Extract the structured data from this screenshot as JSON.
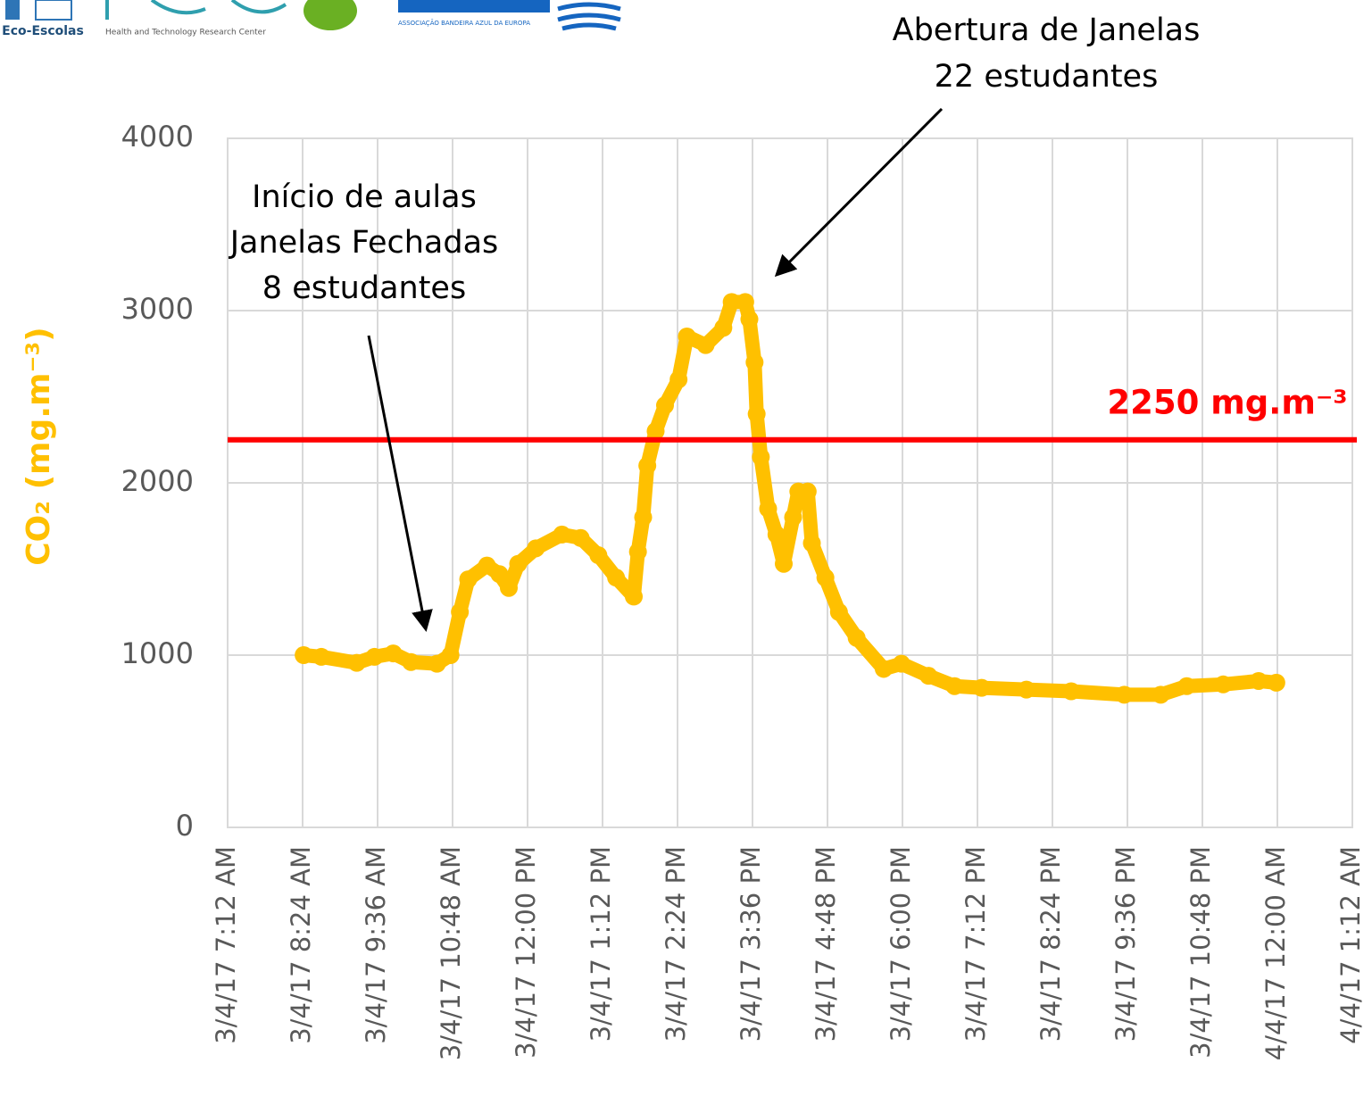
{
  "logos": [
    "Eco-Escolas",
    "Health and Technology Research Center",
    "ASSOCIAÇÃO BANDEIRA AZUL DA EUROPA"
  ],
  "chart_data": {
    "type": "scatter",
    "ylabel": "CO₂ (mg.m⁻³)",
    "ylim": [
      0,
      4000
    ],
    "yticks": [
      0,
      1000,
      2000,
      3000,
      4000
    ],
    "xlim": [
      "3/4/17 7:12 AM",
      "4/4/17 1:12 AM"
    ],
    "xticks": [
      "3/4/17 7:12 AM",
      "3/4/17 8:24 AM",
      "3/4/17 9:36 AM",
      "3/4/17 10:48 AM",
      "3/4/17 12:00 PM",
      "3/4/17 1:12 PM",
      "3/4/17 2:24 PM",
      "3/4/17 3:36 PM",
      "3/4/17 4:48 PM",
      "3/4/17 6:00 PM",
      "3/4/17 7:12 PM",
      "3/4/17 8:24 PM",
      "3/4/17 9:36 PM",
      "3/4/17 10:48 PM",
      "4/4/17 12:00 AM",
      "4/4/17 1:12 AM"
    ],
    "grid": true,
    "threshold": {
      "value": 2250,
      "label": "2250 mg.m⁻³",
      "color": "#ff0000"
    },
    "annotations": [
      {
        "lines": [
          "Início de aulas",
          "Janelas Fechadas",
          "8 estudantes"
        ]
      },
      {
        "lines": [
          "Abertura de Janelas",
          "22 estudantes"
        ]
      }
    ],
    "series": [
      {
        "name": "CO₂",
        "color": "#ffc000",
        "x": [
          "3/4/17 8:25 AM",
          "3/4/17 8:42 AM",
          "3/4/17 9:16 AM",
          "3/4/17 9:33 AM",
          "3/4/17 9:51 AM",
          "3/4/17 10:08 AM",
          "3/4/17 10:33 AM",
          "3/4/17 10:46 AM",
          "3/4/17 10:55 AM",
          "3/4/17 11:03 AM",
          "3/4/17 11:21 AM",
          "3/4/17 11:33 AM",
          "3/4/17 11:42 AM",
          "3/4/17 11:51 AM",
          "3/4/17 12:08 PM",
          "3/4/17 12:33 PM",
          "3/4/17 12:51 PM",
          "3/4/17 1:08 PM",
          "3/4/17 1:25 PM",
          "3/4/17 1:42 PM",
          "3/4/17 1:46 PM",
          "3/4/17 1:51 PM",
          "3/4/17 1:55 PM",
          "3/4/17 2:03 PM",
          "3/4/17 2:12 PM",
          "3/4/17 2:25 PM",
          "3/4/17 2:33 PM",
          "3/4/17 2:51 PM",
          "3/4/17 3:08 PM",
          "3/4/17 3:16 PM",
          "3/4/17 3:29 PM",
          "3/4/17 3:33 PM",
          "3/4/17 3:38 PM",
          "3/4/17 3:40 PM",
          "3/4/17 3:44 PM",
          "3/4/17 3:51 PM",
          "3/4/17 3:59 PM",
          "3/4/17 4:06 PM",
          "3/4/17 4:15 PM",
          "3/4/17 4:20 PM",
          "3/4/17 4:29 PM",
          "3/4/17 4:33 PM",
          "3/4/17 4:46 PM",
          "3/4/17 4:59 PM",
          "3/4/17 5:16 PM",
          "3/4/17 5:42 PM",
          "3/4/17 5:59 PM",
          "3/4/17 6:25 PM",
          "3/4/17 6:50 PM",
          "3/4/17 7:16 PM",
          "3/4/17 7:59 PM",
          "3/4/17 8:42 PM",
          "3/4/17 9:33 PM",
          "3/4/17 10:08 PM",
          "3/4/17 10:33 PM",
          "3/4/17 11:08 PM",
          "3/4/17 11:42 PM",
          "3/4/17 11:59 PM"
        ],
        "values": [
          1000,
          990,
          955,
          990,
          1010,
          960,
          950,
          1000,
          1250,
          1440,
          1520,
          1470,
          1390,
          1530,
          1620,
          1700,
          1680,
          1580,
          1450,
          1340,
          1600,
          1800,
          2100,
          2300,
          2450,
          2600,
          2850,
          2800,
          2900,
          3050,
          3050,
          2950,
          2700,
          2400,
          2150,
          1850,
          1700,
          1530,
          1800,
          1950,
          1950,
          1650,
          1450,
          1250,
          1100,
          920,
          950,
          880,
          820,
          810,
          800,
          790,
          770,
          770,
          820,
          830,
          850,
          840
        ]
      }
    ]
  }
}
